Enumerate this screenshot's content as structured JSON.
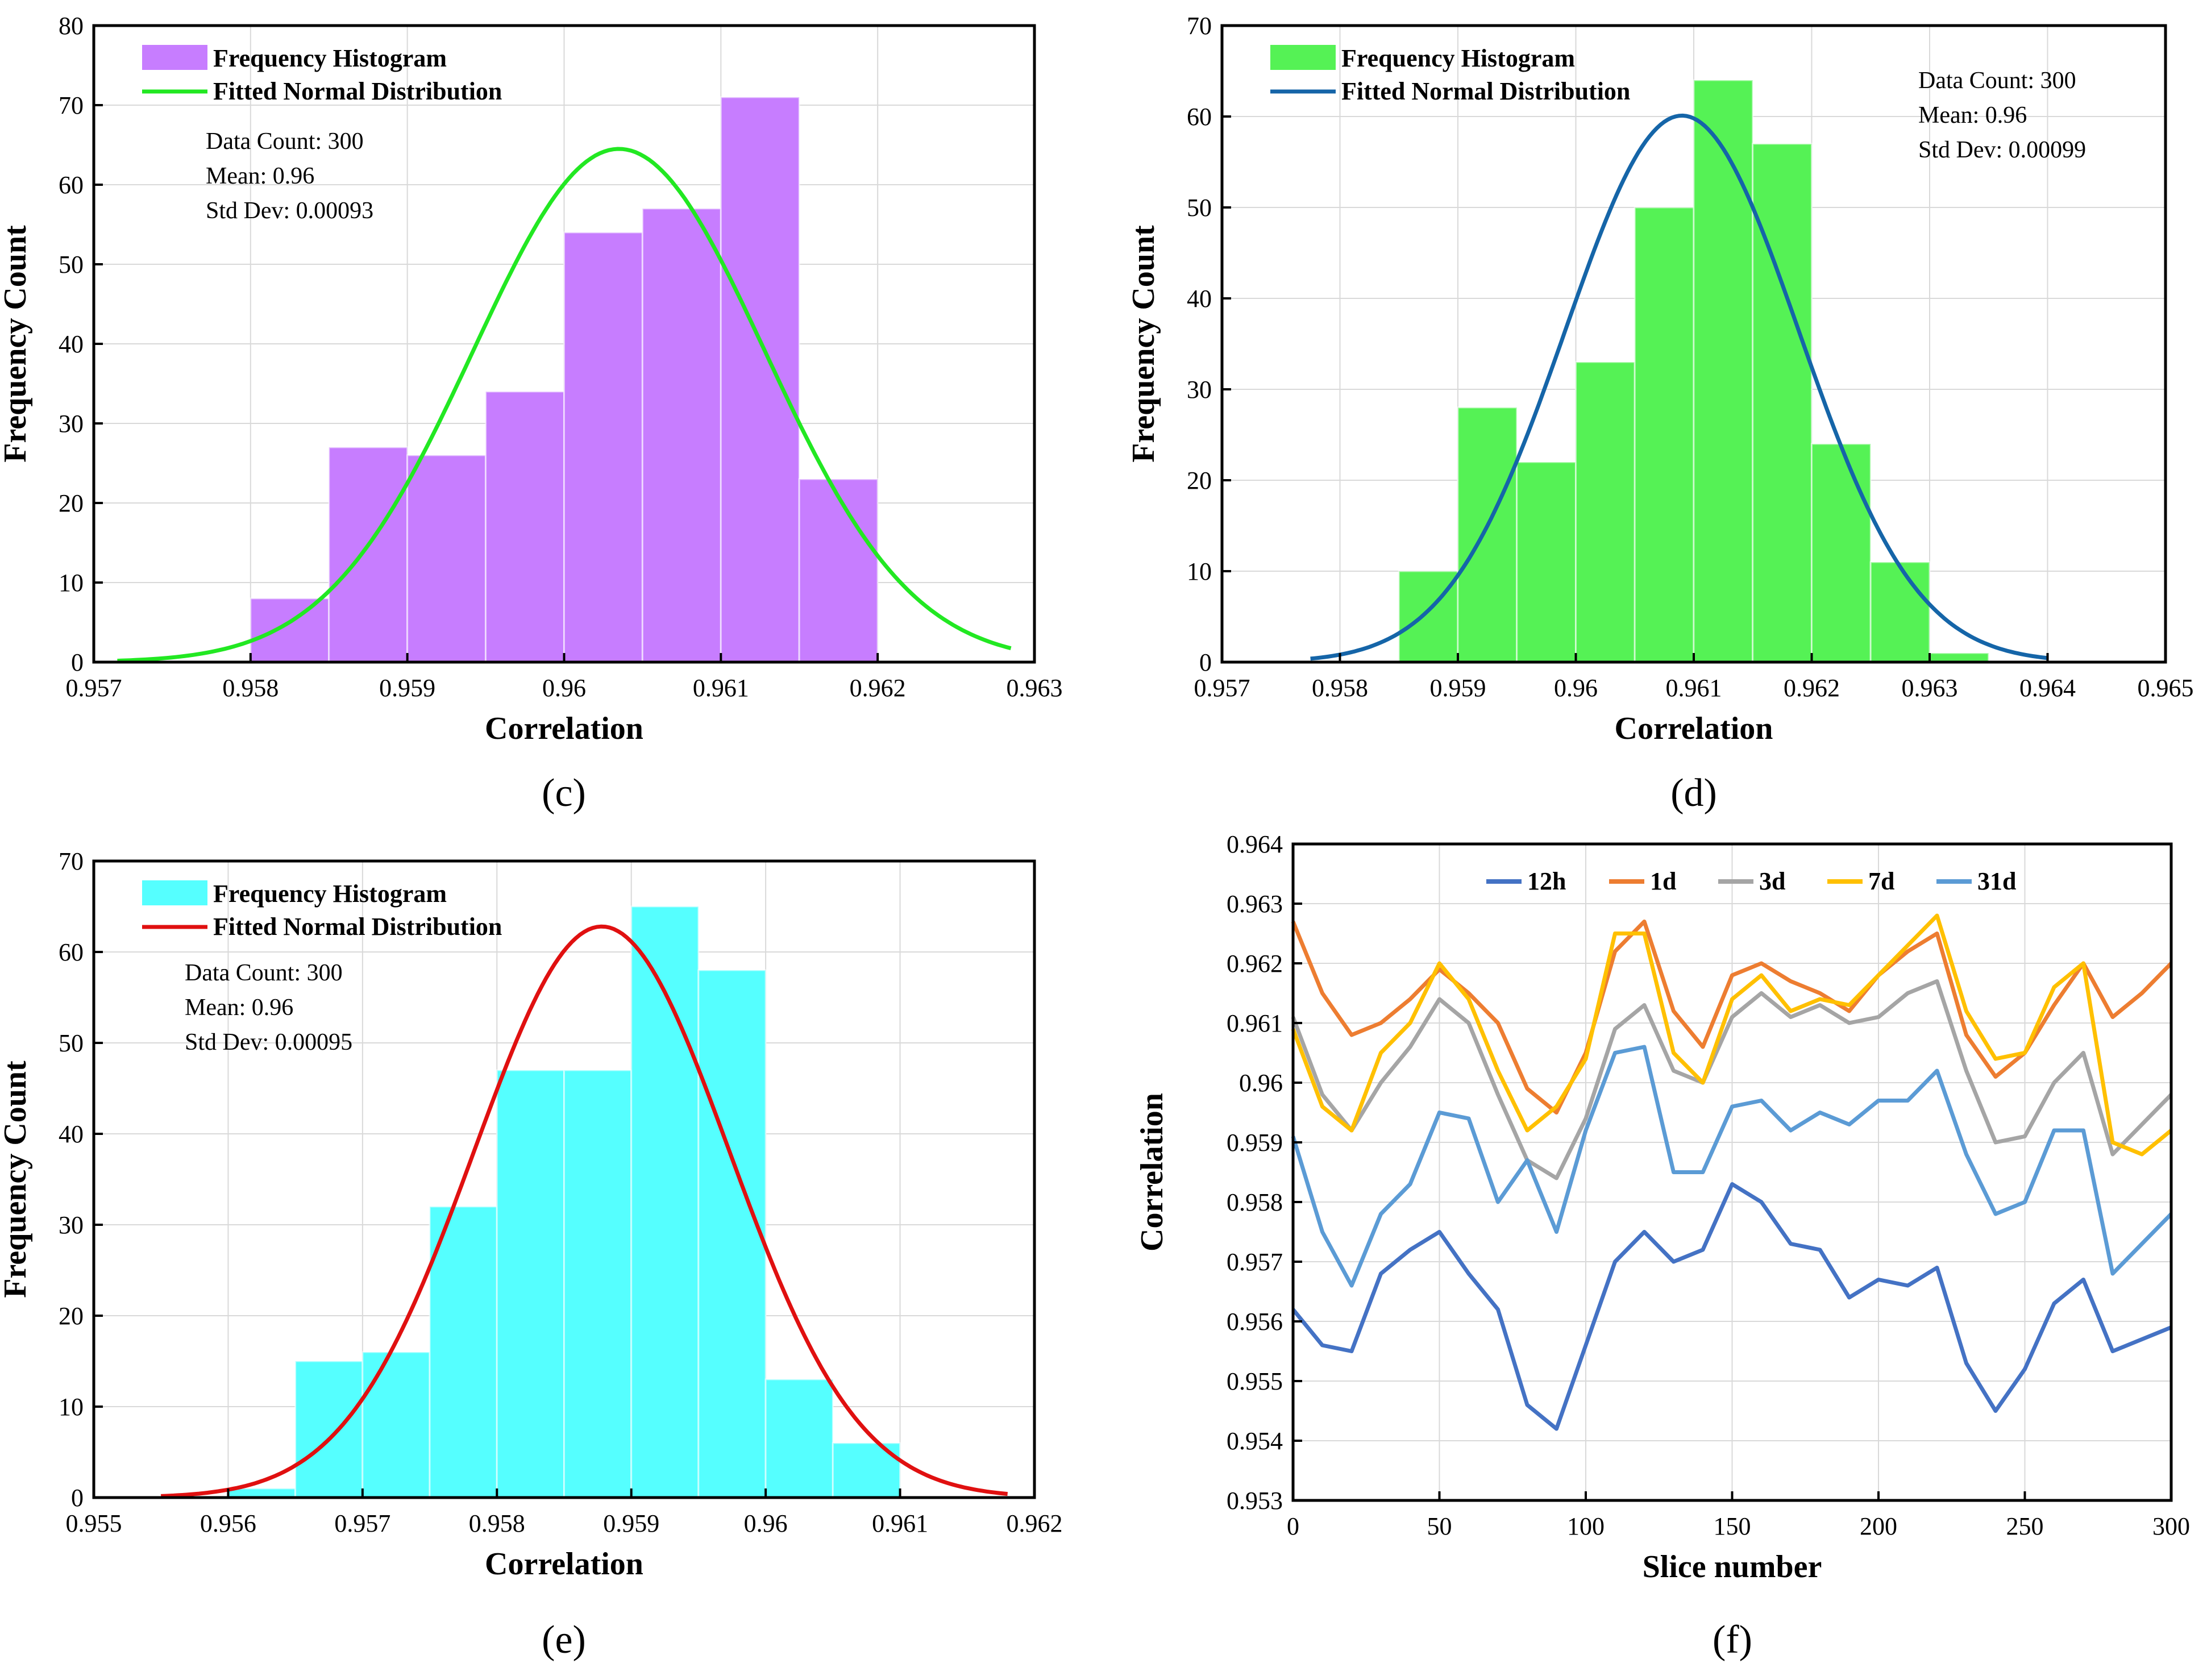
{
  "chart_data": [
    {
      "id": "c",
      "type": "bar",
      "panel_label": "(c)",
      "xlabel": "Correlation",
      "ylabel": "Frequency Count",
      "xlim": [
        0.957,
        0.963
      ],
      "ylim": [
        0,
        80
      ],
      "xticks": [
        0.957,
        0.958,
        0.959,
        0.96,
        0.961,
        0.962,
        0.963
      ],
      "xtick_labels": [
        "0.957",
        "0.958",
        "0.959",
        "0.96",
        "0.961",
        "0.962",
        "0.963"
      ],
      "yticks": [
        0,
        10,
        20,
        30,
        40,
        50,
        60,
        70,
        80
      ],
      "grid": true,
      "legend_position": "top-left",
      "bar_color": "#c77dff",
      "curve_color": "#22e822",
      "bins": [
        {
          "x0": 0.958,
          "x1": 0.9585,
          "count": 8
        },
        {
          "x0": 0.9585,
          "x1": 0.959,
          "count": 27
        },
        {
          "x0": 0.959,
          "x1": 0.9595,
          "count": 26
        },
        {
          "x0": 0.9595,
          "x1": 0.96,
          "count": 34
        },
        {
          "x0": 0.96,
          "x1": 0.9605,
          "count": 54
        },
        {
          "x0": 0.9605,
          "x1": 0.961,
          "count": 57
        },
        {
          "x0": 0.961,
          "x1": 0.9615,
          "count": 71
        },
        {
          "x0": 0.9615,
          "x1": 0.962,
          "count": 23
        }
      ],
      "fit": {
        "mean": 0.96035,
        "std": 0.00093,
        "peak": 64.5,
        "x_range": [
          0.95715,
          0.96285
        ]
      },
      "legend": [
        "Frequency Histogram",
        "Fitted Normal Distribution"
      ],
      "stats": [
        "Data Count: 300",
        "Mean: 0.96",
        "Std Dev: 0.00093"
      ],
      "stats_position": "upper-left"
    },
    {
      "id": "d",
      "type": "bar",
      "panel_label": "(d)",
      "xlabel": "Correlation",
      "ylabel": "Frequency Count",
      "xlim": [
        0.957,
        0.965
      ],
      "ylim": [
        0,
        70
      ],
      "xticks": [
        0.957,
        0.958,
        0.959,
        0.96,
        0.961,
        0.962,
        0.963,
        0.964,
        0.965
      ],
      "xtick_labels": [
        "0.957",
        "0.958",
        "0.959",
        "0.96",
        "0.961",
        "0.962",
        "0.963",
        "0.964",
        "0.965"
      ],
      "yticks": [
        0,
        10,
        20,
        30,
        40,
        50,
        60,
        70
      ],
      "grid": true,
      "legend_position": "top-left",
      "bar_color": "#55f255",
      "curve_color": "#1565a8",
      "bins": [
        {
          "x0": 0.9585,
          "x1": 0.959,
          "count": 10
        },
        {
          "x0": 0.959,
          "x1": 0.9595,
          "count": 28
        },
        {
          "x0": 0.9595,
          "x1": 0.96,
          "count": 22
        },
        {
          "x0": 0.96,
          "x1": 0.9605,
          "count": 33
        },
        {
          "x0": 0.9605,
          "x1": 0.961,
          "count": 50
        },
        {
          "x0": 0.961,
          "x1": 0.9615,
          "count": 64
        },
        {
          "x0": 0.9615,
          "x1": 0.962,
          "count": 57
        },
        {
          "x0": 0.962,
          "x1": 0.9625,
          "count": 24
        },
        {
          "x0": 0.9625,
          "x1": 0.963,
          "count": 11
        },
        {
          "x0": 0.963,
          "x1": 0.9635,
          "count": 1
        }
      ],
      "fit": {
        "mean": 0.9609,
        "std": 0.00099,
        "peak": 60.1,
        "x_range": [
          0.95775,
          0.964
        ]
      },
      "legend": [
        "Frequency Histogram",
        "Fitted Normal Distribution"
      ],
      "stats": [
        "Data Count: 300",
        "Mean: 0.96",
        "Std Dev: 0.00099"
      ],
      "stats_position": "upper-right"
    },
    {
      "id": "e",
      "type": "bar",
      "panel_label": "(e)",
      "xlabel": "Correlation",
      "ylabel": "Frequency Count",
      "xlim": [
        0.955,
        0.962
      ],
      "ylim": [
        0,
        70
      ],
      "xticks": [
        0.955,
        0.956,
        0.957,
        0.958,
        0.959,
        0.96,
        0.961,
        0.962
      ],
      "xtick_labels": [
        "0.955",
        "0.956",
        "0.957",
        "0.958",
        "0.959",
        "0.96",
        "0.961",
        "0.962"
      ],
      "yticks": [
        0,
        10,
        20,
        30,
        40,
        50,
        60,
        70
      ],
      "grid": true,
      "legend_position": "top-left",
      "bar_color": "#55ffff",
      "curve_color": "#e01010",
      "bins": [
        {
          "x0": 0.956,
          "x1": 0.9565,
          "count": 1
        },
        {
          "x0": 0.9565,
          "x1": 0.957,
          "count": 15
        },
        {
          "x0": 0.957,
          "x1": 0.9575,
          "count": 16
        },
        {
          "x0": 0.9575,
          "x1": 0.958,
          "count": 32
        },
        {
          "x0": 0.958,
          "x1": 0.9585,
          "count": 47
        },
        {
          "x0": 0.9585,
          "x1": 0.959,
          "count": 47
        },
        {
          "x0": 0.959,
          "x1": 0.9595,
          "count": 65
        },
        {
          "x0": 0.9595,
          "x1": 0.96,
          "count": 58
        },
        {
          "x0": 0.96,
          "x1": 0.9605,
          "count": 13
        },
        {
          "x0": 0.9605,
          "x1": 0.961,
          "count": 6
        }
      ],
      "fit": {
        "mean": 0.95878,
        "std": 0.00095,
        "peak": 62.8,
        "x_range": [
          0.9555,
          0.9618
        ]
      },
      "legend": [
        "Frequency Histogram",
        "Fitted Normal Distribution"
      ],
      "stats": [
        "Data Count: 300",
        "Mean: 0.96",
        "Std Dev: 0.00095"
      ],
      "stats_position": "upper-left"
    },
    {
      "id": "f",
      "type": "line",
      "panel_label": "(f)",
      "xlabel": "Slice number",
      "ylabel": "Correlation",
      "xlim": [
        0,
        300
      ],
      "ylim": [
        0.953,
        0.964
      ],
      "xticks": [
        0,
        50,
        100,
        150,
        200,
        250,
        300
      ],
      "xtick_labels": [
        "0",
        "50",
        "100",
        "150",
        "200",
        "250",
        "300"
      ],
      "yticks": [
        0.953,
        0.954,
        0.955,
        0.956,
        0.957,
        0.958,
        0.959,
        0.96,
        0.961,
        0.962,
        0.963,
        0.964
      ],
      "ytick_labels": [
        "0.953",
        "0.954",
        "0.955",
        "0.956",
        "0.957",
        "0.958",
        "0.959",
        "0.96",
        "0.961",
        "0.962",
        "0.963",
        "0.964"
      ],
      "grid": true,
      "legend_position": "top-center",
      "x": [
        0,
        10,
        20,
        30,
        40,
        50,
        60,
        70,
        80,
        90,
        100,
        110,
        120,
        130,
        140,
        150,
        160,
        170,
        180,
        190,
        200,
        210,
        220,
        230,
        240,
        250,
        260,
        270,
        280,
        290,
        300
      ],
      "series": [
        {
          "name": "12h",
          "color": "#4472c4",
          "values": [
            0.9562,
            0.9556,
            0.9555,
            0.9568,
            0.9572,
            0.9575,
            0.9568,
            0.9562,
            0.9546,
            0.9542,
            0.9556,
            0.957,
            0.9575,
            0.957,
            0.9572,
            0.9583,
            0.958,
            0.9573,
            0.9572,
            0.9564,
            0.9567,
            0.9566,
            0.9569,
            0.9553,
            0.9545,
            0.9552,
            0.9563,
            0.9567,
            0.9555,
            0.9557,
            0.9559
          ]
        },
        {
          "name": "1d",
          "color": "#ed7d31",
          "values": [
            0.9627,
            0.9615,
            0.9608,
            0.961,
            0.9614,
            0.9619,
            0.9615,
            0.961,
            0.9599,
            0.9595,
            0.9605,
            0.9622,
            0.9627,
            0.9612,
            0.9606,
            0.9618,
            0.962,
            0.9617,
            0.9615,
            0.9612,
            0.9618,
            0.9622,
            0.9625,
            0.9608,
            0.9601,
            0.9605,
            0.9613,
            0.962,
            0.9611,
            0.9615,
            0.962
          ]
        },
        {
          "name": "3d",
          "color": "#a5a5a5",
          "values": [
            0.9611,
            0.9598,
            0.9592,
            0.96,
            0.9606,
            0.9614,
            0.961,
            0.9598,
            0.9587,
            0.9584,
            0.9594,
            0.9609,
            0.9613,
            0.9602,
            0.96,
            0.9611,
            0.9615,
            0.9611,
            0.9613,
            0.961,
            0.9611,
            0.9615,
            0.9617,
            0.9602,
            0.959,
            0.9591,
            0.96,
            0.9605,
            0.9588,
            0.9593,
            0.9598
          ]
        },
        {
          "name": "7d",
          "color": "#ffc000",
          "values": [
            0.9609,
            0.9596,
            0.9592,
            0.9605,
            0.961,
            0.962,
            0.9614,
            0.9602,
            0.9592,
            0.9596,
            0.9604,
            0.9625,
            0.9625,
            0.9605,
            0.96,
            0.9614,
            0.9618,
            0.9612,
            0.9614,
            0.9613,
            0.9618,
            0.9623,
            0.9628,
            0.9612,
            0.9604,
            0.9605,
            0.9616,
            0.962,
            0.959,
            0.9588,
            0.9592
          ]
        },
        {
          "name": "31d",
          "color": "#5b9bd5",
          "values": [
            0.9591,
            0.9575,
            0.9566,
            0.9578,
            0.9583,
            0.9595,
            0.9594,
            0.958,
            0.9587,
            0.9575,
            0.9592,
            0.9605,
            0.9606,
            0.9585,
            0.9585,
            0.9596,
            0.9597,
            0.9592,
            0.9595,
            0.9593,
            0.9597,
            0.9597,
            0.9602,
            0.9588,
            0.9578,
            0.958,
            0.9592,
            0.9592,
            0.9568,
            0.9573,
            0.9578
          ]
        }
      ]
    }
  ]
}
